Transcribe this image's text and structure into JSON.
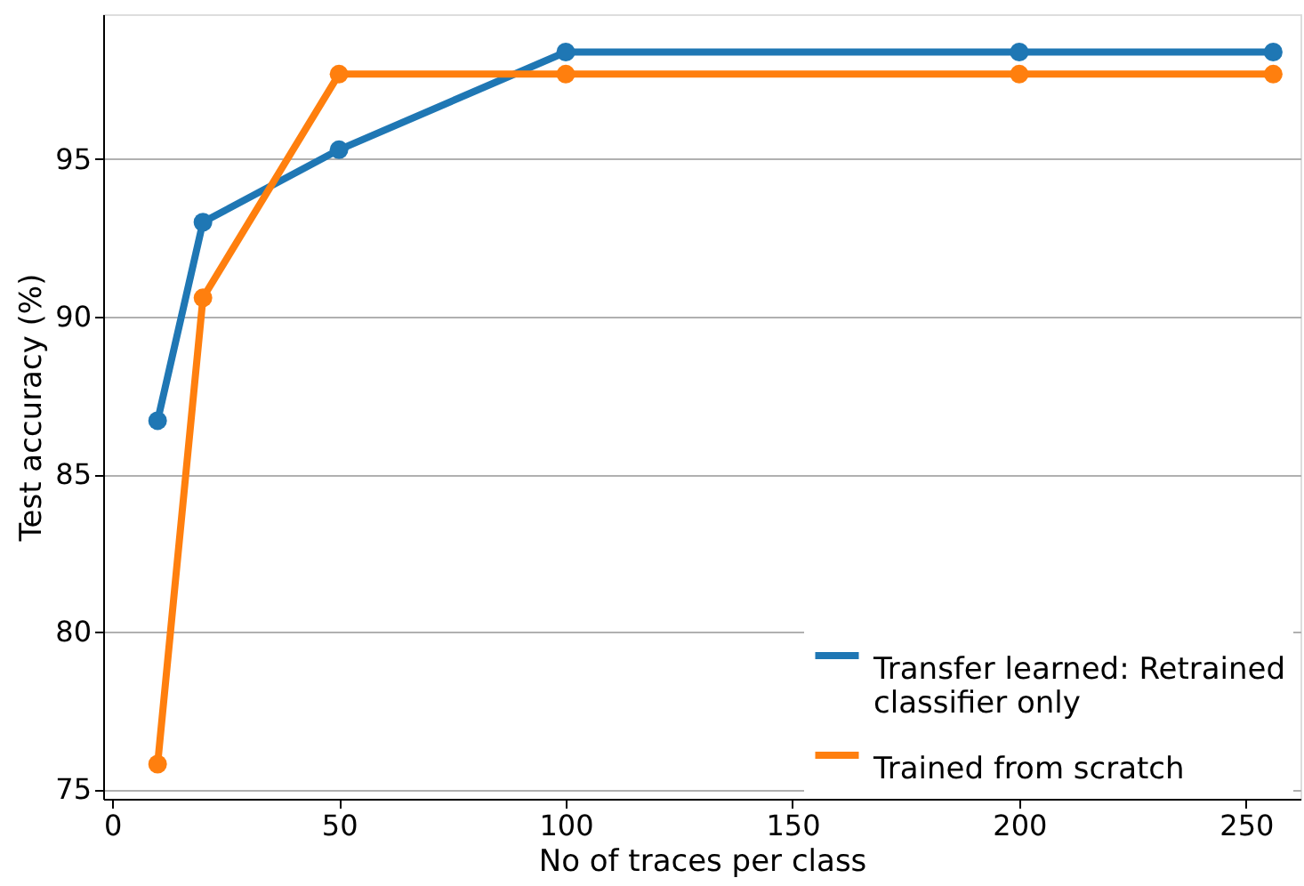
{
  "chart_data": {
    "type": "line",
    "xlabel": "No of traces per class",
    "ylabel": "Test accuracy (%)",
    "x": [
      10,
      20,
      50,
      100,
      200,
      256
    ],
    "series": [
      {
        "name": "Transfer learned: Retrained classifier only",
        "color": "#1f77b4",
        "values": [
          86.7,
          93.0,
          95.3,
          98.4,
          98.4,
          98.4
        ]
      },
      {
        "name": "Trained from scratch",
        "color": "#ff7f0e",
        "values": [
          75.8,
          90.6,
          97.7,
          97.7,
          97.7,
          97.7
        ]
      }
    ],
    "xlim": [
      -2,
      262
    ],
    "ylim": [
      74.7,
      99.6
    ],
    "xticks": [
      0,
      50,
      100,
      150,
      200,
      250
    ],
    "yticks": [
      75,
      80,
      85,
      90,
      95
    ],
    "grid": "y",
    "legend": "bottom right",
    "marker": "circle",
    "line_style": "solid"
  }
}
